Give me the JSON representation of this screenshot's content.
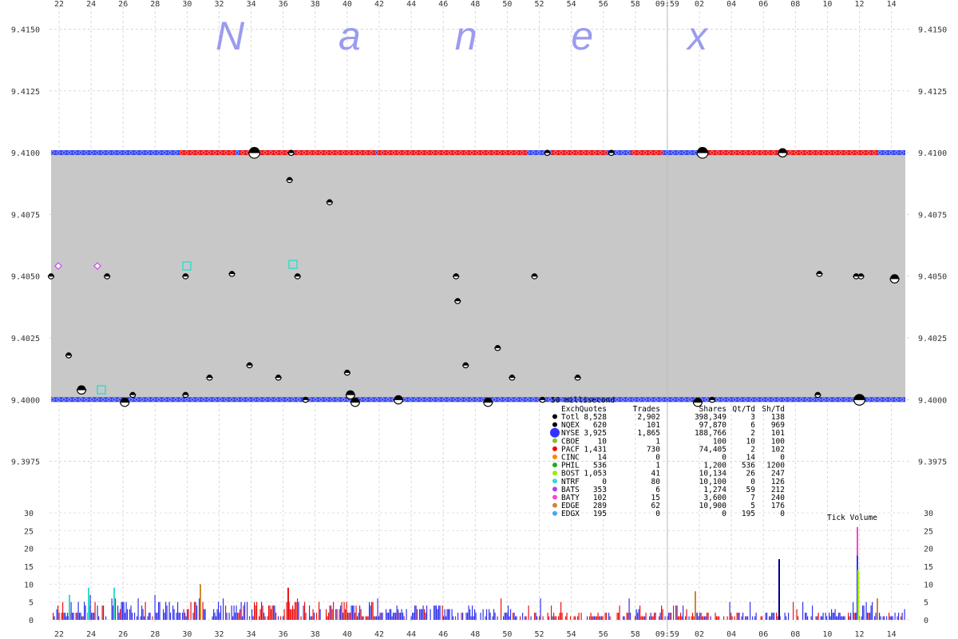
{
  "chart_data": {
    "type": "scatter",
    "watermark": "N a n e x",
    "x_tick_labels": [
      "22",
      "24",
      "26",
      "28",
      "30",
      "32",
      "34",
      "36",
      "38",
      "40",
      "42",
      "44",
      "46",
      "48",
      "50",
      "52",
      "54",
      "56",
      "58",
      "09:59",
      "02",
      "04",
      "06",
      "08",
      "10",
      "12",
      "14"
    ],
    "price_axis": {
      "ylim": [
        9.3955,
        9.4155
      ],
      "ticks": [
        "9.4150",
        "9.4125",
        "9.4100",
        "9.4075",
        "9.4050",
        "9.4025",
        "9.4000",
        "9.3975"
      ]
    },
    "bid": 9.4,
    "ask": 9.41,
    "volume_axis": {
      "label": "Tick Volume",
      "ylim": [
        0,
        30
      ],
      "ticks": [
        "30",
        "25",
        "20",
        "15",
        "10",
        "5",
        "0"
      ]
    },
    "table": {
      "interval": "50 millisecond",
      "headers": [
        "Exch",
        "Quotes",
        "Trades",
        "Shares",
        "Qt/Td",
        "Sh/Td"
      ],
      "rows": [
        {
          "exch": "Totl",
          "quotes": "8,528",
          "trades": "2,902",
          "shares": "398,349",
          "qt_td": "3",
          "sh_td": "138",
          "color": "#000000"
        },
        {
          "exch": "NQEX",
          "quotes": "620",
          "trades": "101",
          "shares": "97,870",
          "qt_td": "6",
          "sh_td": "969",
          "color": "#000000"
        },
        {
          "exch": "NYSE",
          "quotes": "3,925",
          "trades": "1,865",
          "shares": "188,766",
          "qt_td": "2",
          "sh_td": "101",
          "color": "#3333ff"
        },
        {
          "exch": "CBOE",
          "quotes": "10",
          "trades": "1",
          "shares": "100",
          "qt_td": "10",
          "sh_td": "100",
          "color": "#88bb33"
        },
        {
          "exch": "PACF",
          "quotes": "1,431",
          "trades": "730",
          "shares": "74,405",
          "qt_td": "2",
          "sh_td": "102",
          "color": "#ff0000"
        },
        {
          "exch": "CINC",
          "quotes": "14",
          "trades": "0",
          "shares": "0",
          "qt_td": "14",
          "sh_td": "0",
          "color": "#ff8800"
        },
        {
          "exch": "PHIL",
          "quotes": "536",
          "trades": "1",
          "shares": "1,200",
          "qt_td": "536",
          "sh_td": "1200",
          "color": "#22aa22"
        },
        {
          "exch": "BOST",
          "quotes": "1,053",
          "trades": "41",
          "shares": "10,134",
          "qt_td": "26",
          "sh_td": "247",
          "color": "#99ee00"
        },
        {
          "exch": "NTRF",
          "quotes": "0",
          "trades": "80",
          "shares": "10,100",
          "qt_td": "0",
          "sh_td": "126",
          "color": "#33ddcc"
        },
        {
          "exch": "BATS",
          "quotes": "353",
          "trades": "6",
          "shares": "1,274",
          "qt_td": "59",
          "sh_td": "212",
          "color": "#aa44ee"
        },
        {
          "exch": "BATY",
          "quotes": "102",
          "trades": "15",
          "shares": "3,600",
          "qt_td": "7",
          "sh_td": "240",
          "color": "#ff44cc"
        },
        {
          "exch": "EDGE",
          "quotes": "289",
          "trades": "62",
          "shares": "10,900",
          "qt_td": "5",
          "sh_td": "176",
          "color": "#cc8833"
        },
        {
          "exch": "EDGX",
          "quotes": "195",
          "trades": "0",
          "shares": "0",
          "qt_td": "195",
          "sh_td": "0",
          "color": "#44aaee"
        }
      ]
    },
    "trades": [
      {
        "t": 21.5,
        "p": 9.405,
        "s": 1
      },
      {
        "t": 22.6,
        "p": 9.4018,
        "s": 1
      },
      {
        "t": 23.4,
        "p": 9.4004,
        "s": 2
      },
      {
        "t": 25.0,
        "p": 9.405,
        "s": 1
      },
      {
        "t": 26.1,
        "p": 9.3999,
        "s": 2
      },
      {
        "t": 26.6,
        "p": 9.4002,
        "s": 1
      },
      {
        "t": 29.9,
        "p": 9.4002,
        "s": 1
      },
      {
        "t": 29.9,
        "p": 9.405,
        "s": 1
      },
      {
        "t": 31.4,
        "p": 9.4009,
        "s": 1
      },
      {
        "t": 32.8,
        "p": 9.4051,
        "s": 1
      },
      {
        "t": 33.9,
        "p": 9.4014,
        "s": 1
      },
      {
        "t": 34.2,
        "p": 9.41,
        "s": 3
      },
      {
        "t": 35.7,
        "p": 9.4009,
        "s": 1
      },
      {
        "t": 36.4,
        "p": 9.4089,
        "s": 1
      },
      {
        "t": 36.5,
        "p": 9.41,
        "s": 1
      },
      {
        "t": 36.9,
        "p": 9.405,
        "s": 1
      },
      {
        "t": 37.4,
        "p": 9.4,
        "s": 1
      },
      {
        "t": 38.9,
        "p": 9.408,
        "s": 1
      },
      {
        "t": 40.0,
        "p": 9.4011,
        "s": 1
      },
      {
        "t": 40.2,
        "p": 9.4002,
        "s": 2
      },
      {
        "t": 40.5,
        "p": 9.3999,
        "s": 2
      },
      {
        "t": 43.2,
        "p": 9.4,
        "s": 2
      },
      {
        "t": 46.8,
        "p": 9.405,
        "s": 1
      },
      {
        "t": 46.9,
        "p": 9.404,
        "s": 1
      },
      {
        "t": 47.4,
        "p": 9.4014,
        "s": 1
      },
      {
        "t": 48.8,
        "p": 9.3999,
        "s": 2
      },
      {
        "t": 49.4,
        "p": 9.4021,
        "s": 1
      },
      {
        "t": 50.3,
        "p": 9.4009,
        "s": 1
      },
      {
        "t": 51.7,
        "p": 9.405,
        "s": 1
      },
      {
        "t": 52.2,
        "p": 9.4,
        "s": 1
      },
      {
        "t": 52.5,
        "p": 9.41,
        "s": 1
      },
      {
        "t": 54.4,
        "p": 9.4009,
        "s": 1
      },
      {
        "t": 56.5,
        "p": 9.41,
        "s": 1
      },
      {
        "t": 61.9,
        "p": 9.3999,
        "s": 2
      },
      {
        "t": 62.2,
        "p": 9.41,
        "s": 3
      },
      {
        "t": 62.8,
        "p": 9.4,
        "s": 1
      },
      {
        "t": 67.2,
        "p": 9.41,
        "s": 2
      },
      {
        "t": 69.4,
        "p": 9.4002,
        "s": 1
      },
      {
        "t": 69.5,
        "p": 9.4051,
        "s": 1
      },
      {
        "t": 71.8,
        "p": 9.405,
        "s": 1
      },
      {
        "t": 72.0,
        "p": 9.4,
        "s": 3
      },
      {
        "t": 72.1,
        "p": 9.405,
        "s": 1
      },
      {
        "t": 74.2,
        "p": 9.4049,
        "s": 2
      }
    ]
  }
}
